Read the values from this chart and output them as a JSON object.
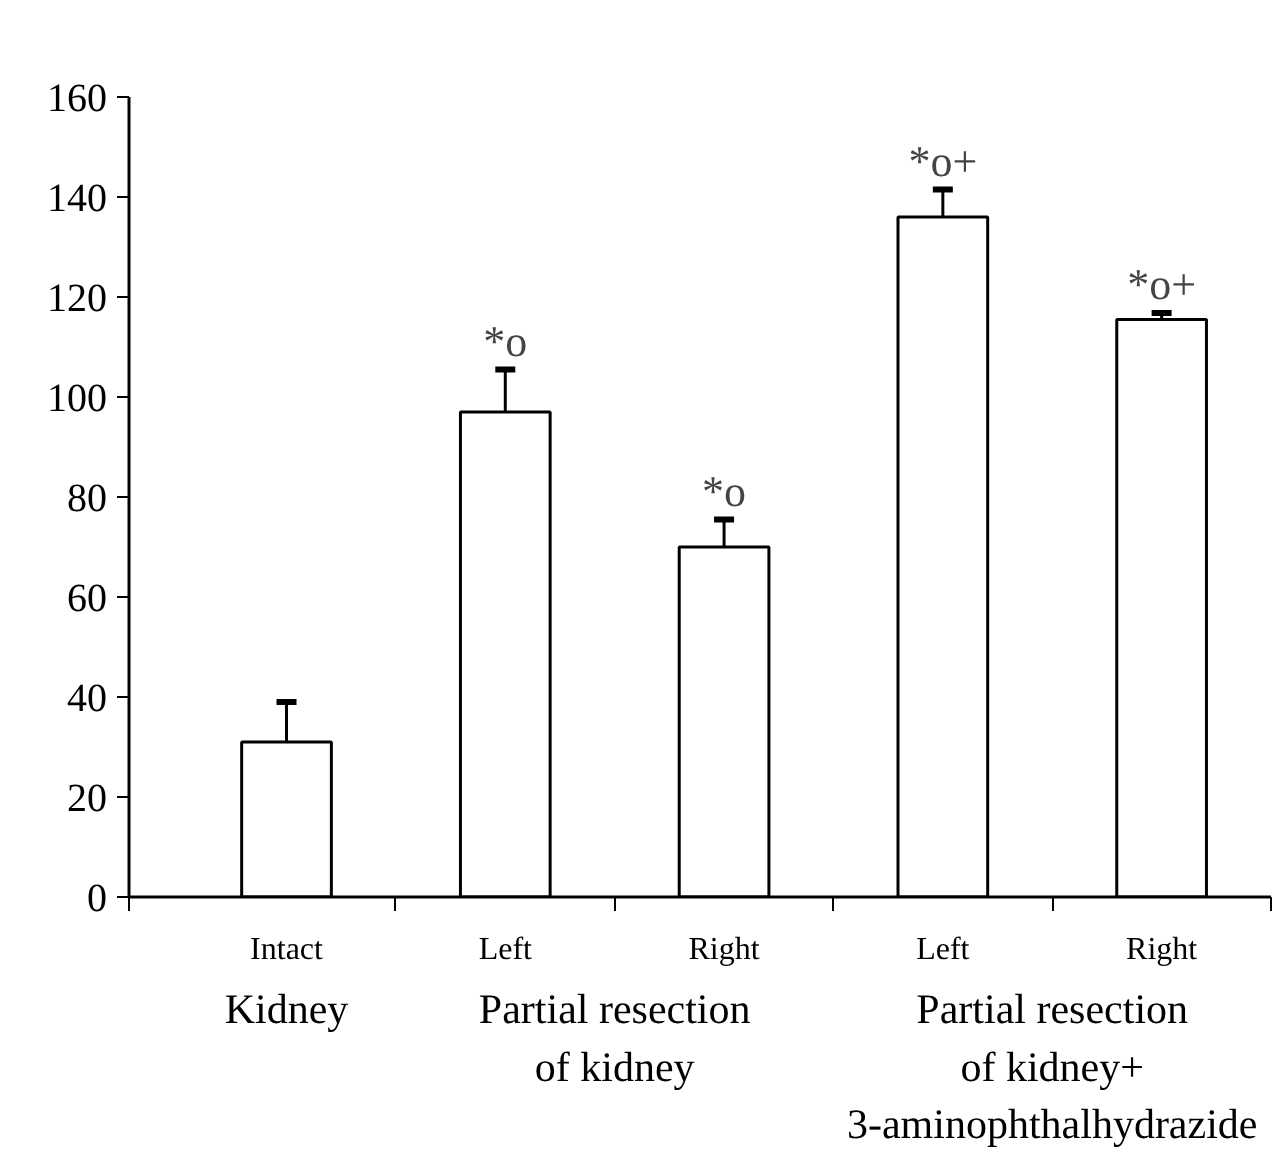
{
  "chart_data": {
    "type": "bar",
    "categories": [
      "Intact",
      "Left",
      "Right",
      "Left",
      "Right"
    ],
    "values": [
      31,
      97,
      70,
      136,
      115.5
    ],
    "errors": [
      [
        31,
        39
      ],
      [
        97,
        105.5
      ],
      [
        70,
        75.5
      ],
      [
        136,
        141.5
      ],
      [
        115.5,
        116.8
      ]
    ],
    "value_labels": [
      null,
      "*o",
      "*o",
      "*o+",
      "*o+"
    ],
    "color": "#ffffff",
    "annotations": [
      "Kidney",
      "Partial resection of kidney",
      "Partial resection of kidney+ 3-aminophthalhydrazide"
    ],
    "ylim": [
      0,
      160
    ],
    "yticks": [
      0,
      20,
      40,
      60,
      80,
      100,
      120,
      140,
      160
    ],
    "grid": false
  }
}
